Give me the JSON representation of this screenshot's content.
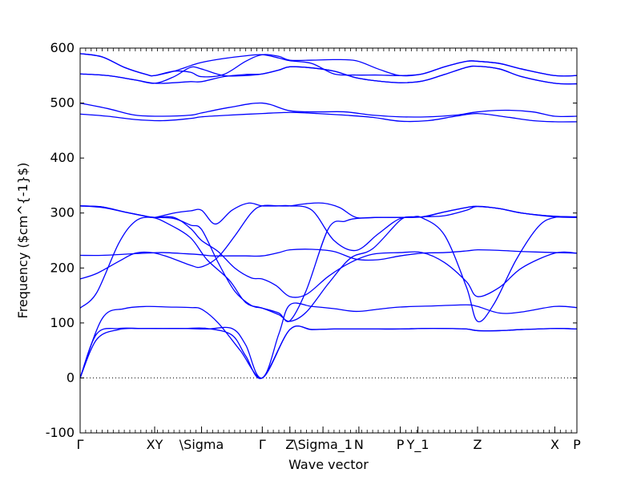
{
  "chart_data": {
    "type": "line",
    "title": "",
    "xlabel": "Wave vector",
    "ylabel": "Frequency ($cm^{-1}$)",
    "ylim": [
      -100,
      600
    ],
    "xlim": [
      0,
      9
    ],
    "y_ticks": [
      -100,
      0,
      100,
      200,
      300,
      400,
      500,
      600
    ],
    "grid": false,
    "x_ticks": [
      {
        "x": 0,
        "label": "Γ"
      },
      {
        "x": 1.35,
        "label": "XY"
      },
      {
        "x": 2.2,
        "label": "\\Sigma"
      },
      {
        "x": 3.3,
        "label": "Γ"
      },
      {
        "x": 3.8,
        "label": "Z"
      },
      {
        "x": 4.4,
        "label": "\\Sigma_1"
      },
      {
        "x": 5.05,
        "label": "N"
      },
      {
        "x": 5.8,
        "label": "P"
      },
      {
        "x": 6.12,
        "label": "Y_1"
      },
      {
        "x": 7.2,
        "label": "Z"
      },
      {
        "x": 8.6,
        "label": "X"
      },
      {
        "x": 9,
        "label": "P"
      }
    ],
    "zero_line": 0,
    "series_color": "#0000ff",
    "series": [
      {
        "x": [
          0,
          0.3,
          0.7,
          1.1,
          1.5,
          1.9,
          2.3,
          2.75,
          3.0,
          3.3,
          3.8,
          4.2,
          4.6,
          5.0,
          5.4,
          5.8,
          6.2,
          6.6,
          7.0,
          7.2,
          7.6,
          8.0,
          8.6,
          9
        ],
        "y": [
          0,
          70,
          88,
          90,
          90,
          90,
          90,
          78,
          40,
          0,
          88,
          88,
          89,
          89,
          89,
          89,
          90,
          90,
          89,
          86,
          86,
          88,
          90,
          89
        ]
      },
      {
        "x": [
          0,
          0.3,
          0.7,
          1.1,
          1.5,
          1.9,
          2.3,
          2.75,
          3.0,
          3.3,
          3.8,
          4.2,
          4.6,
          5.0,
          5.4,
          5.8,
          6.2,
          6.6,
          7.0,
          7.2,
          7.6,
          8.0,
          8.6,
          9
        ],
        "y": [
          0,
          80,
          90,
          90,
          90,
          90,
          89,
          90,
          60,
          0,
          88,
          88,
          89,
          89,
          89,
          89,
          90,
          90,
          89,
          86,
          86,
          88,
          90,
          89
        ]
      },
      {
        "x": [
          0,
          0.4,
          0.8,
          1.2,
          1.6,
          2.0,
          2.2,
          2.5,
          2.9,
          3.3,
          3.6,
          3.8,
          4.2,
          4.6,
          5.0,
          5.4,
          5.8,
          6.4,
          7.0,
          7.2,
          7.6,
          8.0,
          8.6,
          9
        ],
        "y": [
          0,
          108,
          126,
          130,
          129,
          128,
          125,
          100,
          50,
          0,
          80,
          133,
          130,
          126,
          121,
          125,
          129,
          131,
          133,
          130,
          118,
          120,
          130,
          128
        ]
      },
      {
        "x": [
          0,
          0.3,
          0.7,
          1.0,
          1.3,
          1.6,
          2.0,
          2.3,
          2.7,
          3.0,
          3.3,
          3.6,
          3.8,
          4.1,
          4.5,
          4.9,
          5.3,
          5.8,
          6.0,
          6.2,
          6.6,
          7.0,
          7.2,
          7.5,
          7.9,
          8.3,
          8.6,
          9
        ],
        "y": [
          127,
          155,
          245,
          285,
          292,
          280,
          255,
          215,
          178,
          137,
          127,
          115,
          103,
          120,
          172,
          218,
          235,
          287,
          292,
          291,
          260,
          165,
          103,
          135,
          215,
          275,
          292,
          292
        ]
      },
      {
        "x": [
          0,
          0.3,
          0.7,
          1.0,
          1.3,
          1.6,
          2.0,
          2.2,
          2.5,
          2.8,
          3.1,
          3.3,
          3.6,
          3.8,
          4.2,
          4.6,
          5.0,
          5.4,
          5.8,
          6.2,
          6.6,
          7.0,
          7.2,
          7.6,
          8.0,
          8.6,
          9
        ],
        "y": [
          180,
          190,
          212,
          227,
          228,
          220,
          205,
          202,
          220,
          258,
          300,
          313,
          313,
          313,
          305,
          250,
          232,
          262,
          290,
          293,
          295,
          305,
          312,
          308,
          300,
          293,
          292
        ]
      },
      {
        "x": [
          0,
          0.4,
          0.8,
          1.2,
          1.5,
          1.9,
          2.2,
          2.4,
          2.7,
          3.0,
          3.3,
          3.6,
          3.8,
          4.2,
          4.6,
          5.0,
          5.4,
          5.8,
          6.2,
          6.6,
          7.0,
          7.2,
          7.6,
          8.0,
          8.6,
          9
        ],
        "y": [
          223,
          223,
          225,
          227,
          228,
          226,
          224,
          222,
          222,
          222,
          222,
          228,
          233,
          234,
          230,
          216,
          215,
          222,
          227,
          228,
          231,
          233,
          232,
          230,
          228,
          227
        ]
      },
      {
        "x": [
          0,
          0.4,
          0.8,
          1.2,
          1.35,
          1.7,
          2.0,
          2.2,
          2.5,
          2.8,
          3.1,
          3.3,
          3.55,
          3.8,
          4.1,
          4.5,
          4.9,
          5.3,
          5.8,
          6.2,
          6.6,
          7.0,
          7.2,
          7.6,
          8.0,
          8.6,
          9
        ],
        "y": [
          313,
          311,
          302,
          294,
          292,
          292,
          272,
          250,
          230,
          200,
          182,
          180,
          168,
          148,
          152,
          185,
          210,
          225,
          228,
          228,
          210,
          175,
          148,
          165,
          200,
          227,
          227
        ]
      },
      {
        "x": [
          0,
          0.4,
          0.8,
          1.2,
          1.35,
          1.7,
          2.0,
          2.2,
          2.45,
          2.75,
          3.05,
          3.3,
          3.6,
          3.8,
          4.1,
          4.4,
          4.7,
          5.0,
          5.4,
          5.8,
          6.2,
          6.6,
          7.0,
          7.2,
          7.6,
          8.0,
          8.6,
          9
        ],
        "y": [
          313,
          310,
          302,
          294,
          292,
          300,
          304,
          305,
          280,
          305,
          318,
          313,
          313,
          313,
          317,
          318,
          310,
          292,
          292,
          292,
          293,
          302,
          310,
          312,
          308,
          300,
          294,
          293
        ]
      },
      {
        "x": [
          0,
          0.4,
          0.8,
          1.2,
          1.35,
          1.7,
          2.0,
          2.2,
          2.5,
          2.8,
          3.1,
          3.3,
          3.6,
          3.8,
          4.1,
          4.5,
          4.8,
          5.0,
          5.4,
          5.8,
          6.2,
          6.6,
          7.0,
          7.2,
          7.6,
          8.0,
          8.6,
          9
        ],
        "y": [
          313,
          311,
          302,
          294,
          292,
          290,
          278,
          270,
          210,
          158,
          132,
          127,
          118,
          104,
          160,
          272,
          285,
          290,
          292,
          292,
          293,
          302,
          310,
          312,
          308,
          300,
          294,
          293
        ]
      },
      {
        "x": [
          0,
          0.5,
          1.0,
          1.5,
          2.0,
          2.2,
          2.7,
          3.3,
          3.8,
          4.3,
          4.8,
          5.3,
          5.8,
          6.3,
          6.8,
          7.2,
          7.7,
          8.2,
          8.6,
          9
        ],
        "y": [
          480,
          476,
          470,
          468,
          472,
          475,
          478,
          481,
          483,
          481,
          478,
          474,
          467,
          468,
          476,
          481,
          475,
          468,
          466,
          466
        ]
      },
      {
        "x": [
          0,
          0.5,
          1.0,
          1.5,
          2.0,
          2.2,
          2.7,
          3.3,
          3.8,
          4.3,
          4.8,
          5.3,
          5.8,
          6.3,
          6.8,
          7.2,
          7.7,
          8.2,
          8.6,
          9
        ],
        "y": [
          500,
          490,
          478,
          476,
          478,
          482,
          492,
          500,
          486,
          484,
          484,
          478,
          475,
          475,
          478,
          484,
          487,
          484,
          476,
          476
        ]
      },
      {
        "x": [
          0,
          0.5,
          1.0,
          1.35,
          1.7,
          2.0,
          2.2,
          2.6,
          3.0,
          3.3,
          3.6,
          3.8,
          4.2,
          4.6,
          5.0,
          5.4,
          5.8,
          6.2,
          6.6,
          7.0,
          7.2,
          7.6,
          8.0,
          8.6,
          9
        ],
        "y": [
          553,
          550,
          542,
          536,
          537,
          539,
          539,
          548,
          552,
          553,
          560,
          566,
          564,
          558,
          546,
          540,
          537,
          540,
          552,
          565,
          567,
          562,
          548,
          536,
          535
        ]
      },
      {
        "x": [
          0,
          0.5,
          1.0,
          1.35,
          1.7,
          2.0,
          2.2,
          2.6,
          3.0,
          3.3,
          3.6,
          3.8,
          4.2,
          4.6,
          5.0,
          5.4,
          5.8,
          6.2,
          6.6,
          7.0,
          7.2,
          7.6,
          8.0,
          8.6,
          9
        ],
        "y": [
          553,
          550,
          542,
          536,
          548,
          565,
          562,
          550,
          550,
          553,
          560,
          566,
          564,
          558,
          546,
          540,
          537,
          540,
          552,
          565,
          567,
          562,
          548,
          536,
          535
        ]
      },
      {
        "x": [
          0,
          0.4,
          0.8,
          1.2,
          1.35,
          1.7,
          2.0,
          2.2,
          2.6,
          3.0,
          3.3,
          3.6,
          3.8,
          4.2,
          4.6,
          5.0,
          5.4,
          5.8,
          6.2,
          6.6,
          7.0,
          7.2,
          7.6,
          8.0,
          8.6,
          9
        ],
        "y": [
          590,
          584,
          565,
          552,
          550,
          558,
          568,
          574,
          581,
          586,
          588,
          582,
          577,
          572,
          553,
          551,
          551,
          550,
          553,
          566,
          576,
          576,
          572,
          562,
          550,
          550
        ]
      },
      {
        "x": [
          0,
          0.4,
          0.8,
          1.2,
          1.35,
          1.7,
          2.0,
          2.2,
          2.6,
          3.0,
          3.3,
          3.6,
          3.8,
          4.2,
          4.6,
          5.0,
          5.4,
          5.8,
          6.2,
          6.6,
          7.0,
          7.2,
          7.6,
          8.0,
          8.6,
          9
        ],
        "y": [
          590,
          584,
          565,
          552,
          550,
          558,
          556,
          548,
          552,
          576,
          588,
          585,
          578,
          578,
          579,
          577,
          562,
          550,
          553,
          566,
          576,
          576,
          572,
          562,
          550,
          550
        ]
      }
    ]
  }
}
